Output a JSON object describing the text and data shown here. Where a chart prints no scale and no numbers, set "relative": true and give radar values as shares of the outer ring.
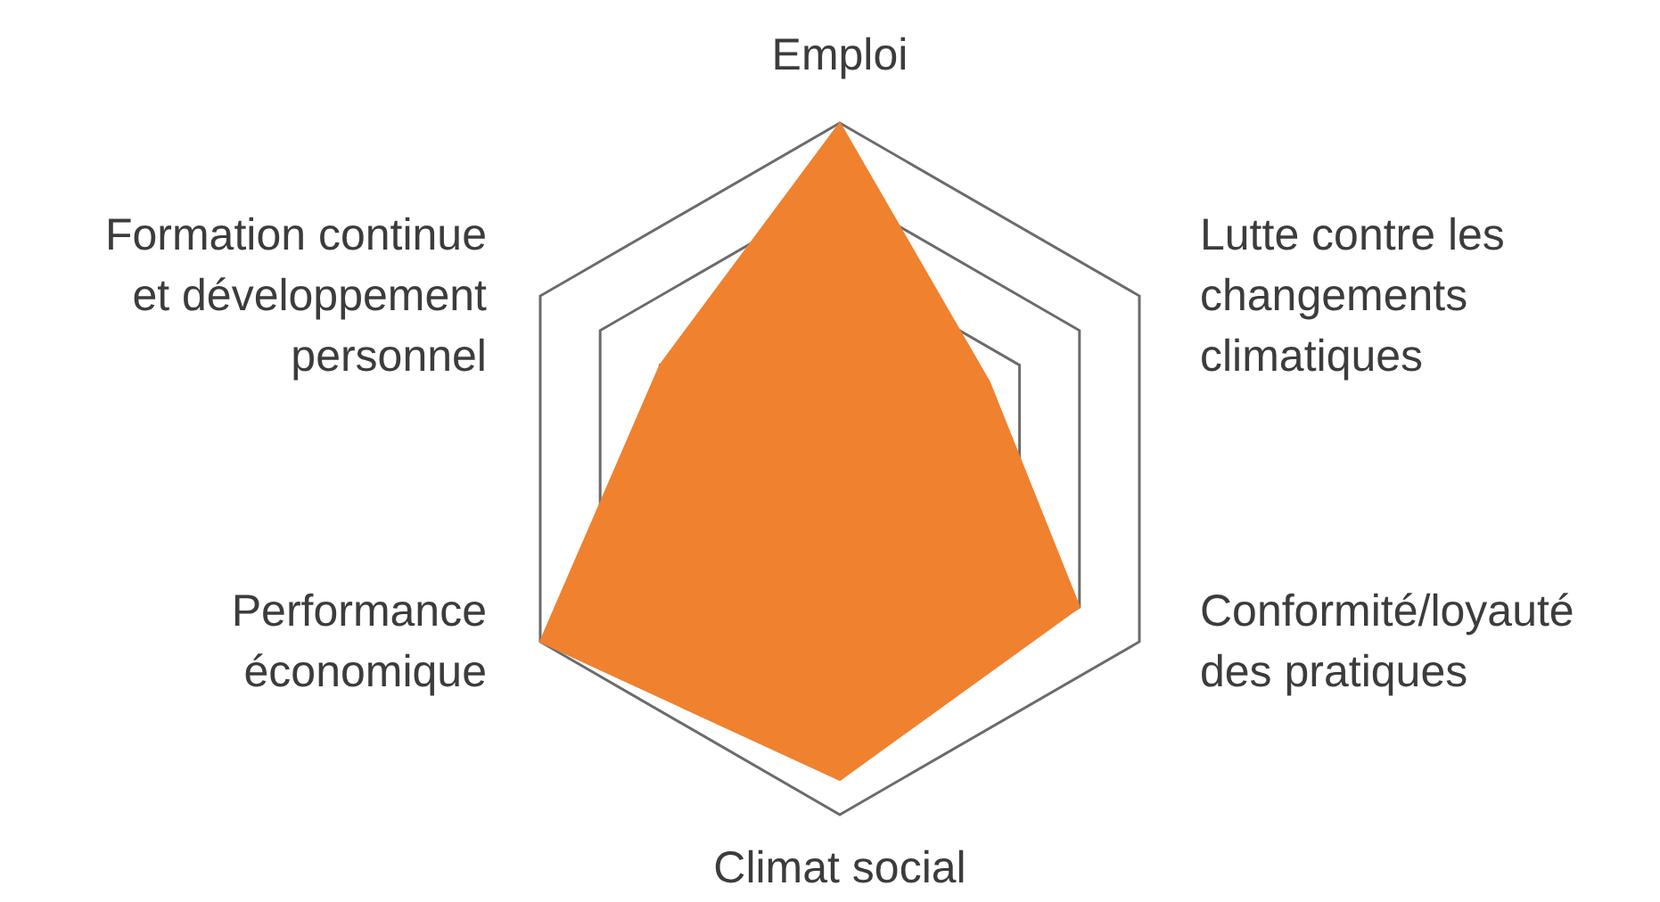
{
  "chart_data": {
    "type": "radar",
    "relative": true,
    "grid": true,
    "categories": [
      "Emploi",
      "Lutte contre les changements climatiques",
      "Conformité/loyauté des pratiques",
      "Climat social",
      "Performance économique",
      "Formation continue et développement personnel"
    ],
    "series": [
      {
        "color": "#f0812f",
        "values": [
          1.0,
          0.5,
          0.8,
          0.9,
          1.0,
          0.6
        ]
      }
    ]
  }
}
